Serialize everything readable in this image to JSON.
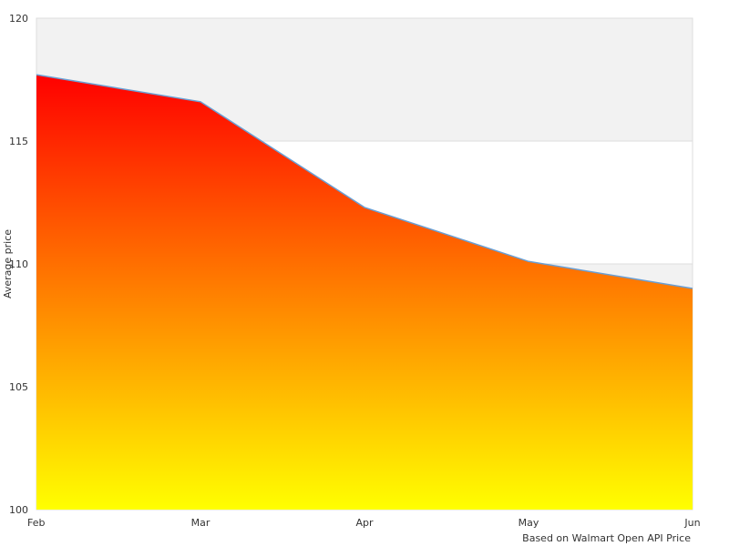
{
  "chart_data": {
    "type": "area",
    "title": "",
    "xlabel": "",
    "ylabel": "Average price",
    "categories": [
      "Feb",
      "Mar",
      "Apr",
      "May",
      "Jun"
    ],
    "series": [
      {
        "values": [
          117.7,
          116.6,
          112.3,
          110.1,
          109.0
        ]
      }
    ],
    "ylim": [
      100,
      120
    ],
    "y_ticks": [
      100,
      105,
      110,
      115,
      120
    ],
    "grid": true,
    "alternate_bands": true,
    "legend": "none",
    "colors": {
      "fill_top": "#ff0000",
      "fill_bottom": "#ffff00",
      "line": "#6a9fd4",
      "band": "#f2f2f2",
      "grid": "#dddddd"
    }
  },
  "credit": "Based on Walmart Open API Price"
}
